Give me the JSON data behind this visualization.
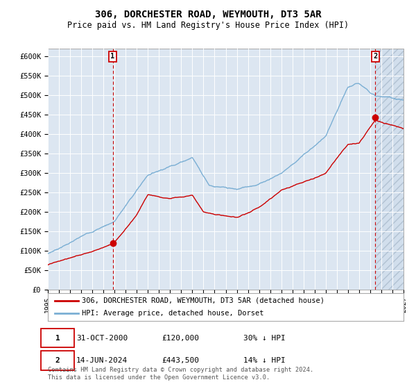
{
  "title": "306, DORCHESTER ROAD, WEYMOUTH, DT3 5AR",
  "subtitle": "Price paid vs. HM Land Registry's House Price Index (HPI)",
  "plot_bg_color": "#dce6f1",
  "grid_color": "#ffffff",
  "hpi_line_color": "#7bafd4",
  "house_line_color": "#cc0000",
  "sale1_date_label": "31-OCT-2000",
  "sale1_price": 120000,
  "sale1_label": "30% ↓ HPI",
  "sale2_date_label": "14-JUN-2024",
  "sale2_price": 443500,
  "sale2_label": "14% ↓ HPI",
  "ylim": [
    0,
    620000
  ],
  "yticks": [
    0,
    50000,
    100000,
    150000,
    200000,
    250000,
    300000,
    350000,
    400000,
    450000,
    500000,
    550000,
    600000
  ],
  "ytick_labels": [
    "£0",
    "£50K",
    "£100K",
    "£150K",
    "£200K",
    "£250K",
    "£300K",
    "£350K",
    "£400K",
    "£450K",
    "£500K",
    "£550K",
    "£600K"
  ],
  "legend_house": "306, DORCHESTER ROAD, WEYMOUTH, DT3 5AR (detached house)",
  "legend_hpi": "HPI: Average price, detached house, Dorset",
  "footnote": "Contains HM Land Registry data © Crown copyright and database right 2024.\nThis data is licensed under the Open Government Licence v3.0.",
  "vline_color": "#cc0000",
  "marker_color": "#cc0000",
  "sale1_year": 2000.833,
  "sale2_year": 2024.458,
  "xstart_year": 1995,
  "xend_year": 2027
}
